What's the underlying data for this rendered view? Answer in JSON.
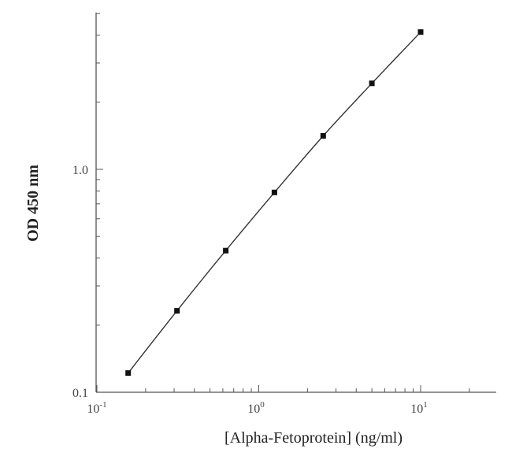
{
  "chart_data": {
    "type": "line",
    "title": "",
    "xlabel": "[Alpha-Fetoprotein] (ng/ml)",
    "ylabel": "OD 450 nm",
    "xscale": "log",
    "yscale": "log",
    "xlim": [
      0.1,
      30
    ],
    "ylim": [
      0.1,
      5
    ],
    "x_tick_labels": [
      {
        "base": "10",
        "exp": "-1"
      },
      {
        "base": "10",
        "exp": "0"
      },
      {
        "base": "10",
        "exp": "1"
      }
    ],
    "y_tick_labels": [
      "0.1",
      "1.0"
    ],
    "grid": false,
    "series": [
      {
        "x": [
          0.156,
          0.3125,
          0.625,
          1.25,
          2.5,
          5,
          10
        ],
        "y": [
          0.122,
          0.232,
          0.432,
          0.788,
          1.413,
          2.431,
          4.13
        ]
      }
    ]
  }
}
